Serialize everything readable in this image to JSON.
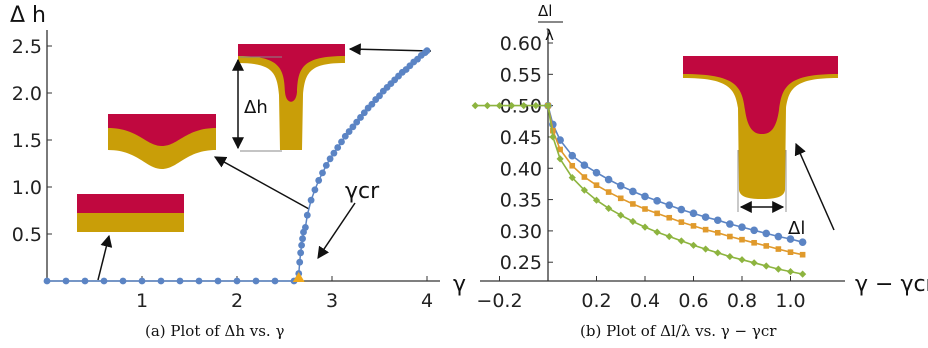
{
  "colors": {
    "red": "#c0083f",
    "gold": "#c99e08",
    "blue": "#5b84c4",
    "orange": "#e09a2c",
    "green": "#8db43f"
  },
  "chart_data": [
    {
      "type": "scatter",
      "ylabel": "Δ h",
      "xlabel": "γ",
      "xlim": [
        0,
        4.1
      ],
      "ylim": [
        0,
        2.5
      ],
      "x_ticks": [
        "1",
        "2",
        "3",
        "4"
      ],
      "y_ticks": [
        "0.5",
        "1.0",
        "1.5",
        "2.0",
        "2.5"
      ],
      "caption": "(a) Plot of Δh vs. γ",
      "critical_label": "γcr",
      "critical_x": 2.65,
      "inset_label": "Δh",
      "series": [
        {
          "color": "#5b84c4",
          "x": [
            0,
            0.2,
            0.4,
            0.6,
            0.8,
            1.0,
            1.2,
            1.4,
            1.6,
            1.8,
            2.0,
            2.2,
            2.4,
            2.6,
            2.65,
            2.66,
            2.67,
            2.68,
            2.69,
            2.7,
            2.72,
            2.74,
            2.78,
            2.82,
            2.86,
            2.9,
            2.94,
            2.98,
            3.02,
            3.06,
            3.1,
            3.14,
            3.18,
            3.22,
            3.26,
            3.3,
            3.34,
            3.38,
            3.42,
            3.46,
            3.5,
            3.54,
            3.58,
            3.62,
            3.66,
            3.7,
            3.74,
            3.78,
            3.82,
            3.86,
            3.9,
            3.94,
            3.98,
            4.0
          ],
          "y": [
            0,
            0,
            0,
            0,
            0,
            0,
            0,
            0,
            0,
            0,
            0,
            0,
            0,
            0,
            0.08,
            0.2,
            0.3,
            0.38,
            0.45,
            0.52,
            0.57,
            0.7,
            0.86,
            0.97,
            1.07,
            1.15,
            1.23,
            1.3,
            1.36,
            1.42,
            1.48,
            1.54,
            1.59,
            1.64,
            1.69,
            1.74,
            1.79,
            1.84,
            1.88,
            1.93,
            1.97,
            2.02,
            2.06,
            2.1,
            2.14,
            2.18,
            2.22,
            2.25,
            2.29,
            2.33,
            2.36,
            2.4,
            2.43,
            2.45
          ]
        }
      ]
    },
    {
      "type": "line",
      "ylabel_num": "Δl",
      "ylabel_den": "λ",
      "xlabel": "γ − γcr",
      "left_axis_label": "γ",
      "xlim": [
        -0.3,
        1.1
      ],
      "ylim": [
        0.22,
        0.6
      ],
      "x_ticks": [
        "−0.2",
        "0.2",
        "0.4",
        "0.6",
        "0.8",
        "1.0"
      ],
      "y_ticks": [
        "0.25",
        "0.30",
        "0.35",
        "0.40",
        "0.45",
        "0.50",
        "0.55",
        "0.60"
      ],
      "caption": "(b) Plot of Δl/λ vs. γ − γcr",
      "inset_label": "Δl",
      "series": [
        {
          "color": "#5b84c4",
          "marker": "circle",
          "x": [
            0,
            0.02,
            0.05,
            0.1,
            0.15,
            0.2,
            0.25,
            0.3,
            0.35,
            0.4,
            0.45,
            0.5,
            0.55,
            0.6,
            0.65,
            0.7,
            0.75,
            0.8,
            0.85,
            0.9,
            0.95,
            1.0,
            1.05
          ],
          "y": [
            0.5,
            0.47,
            0.445,
            0.42,
            0.405,
            0.393,
            0.382,
            0.372,
            0.363,
            0.355,
            0.348,
            0.341,
            0.334,
            0.328,
            0.322,
            0.317,
            0.311,
            0.306,
            0.301,
            0.296,
            0.291,
            0.287,
            0.282
          ]
        },
        {
          "color": "#e09a2c",
          "marker": "square",
          "x": [
            0,
            0.02,
            0.05,
            0.1,
            0.15,
            0.2,
            0.25,
            0.3,
            0.35,
            0.4,
            0.45,
            0.5,
            0.55,
            0.6,
            0.65,
            0.7,
            0.75,
            0.8,
            0.85,
            0.9,
            0.95,
            1.0,
            1.05
          ],
          "y": [
            0.5,
            0.46,
            0.43,
            0.404,
            0.386,
            0.373,
            0.362,
            0.352,
            0.343,
            0.335,
            0.328,
            0.321,
            0.314,
            0.308,
            0.302,
            0.297,
            0.291,
            0.286,
            0.281,
            0.276,
            0.271,
            0.266,
            0.262
          ]
        },
        {
          "color": "#8db43f",
          "marker": "diamond",
          "x": [
            -0.3,
            -0.25,
            -0.2,
            -0.15,
            -0.1,
            -0.05,
            0,
            0.02,
            0.05,
            0.1,
            0.15,
            0.2,
            0.25,
            0.3,
            0.35,
            0.4,
            0.45,
            0.5,
            0.55,
            0.6,
            0.65,
            0.7,
            0.75,
            0.8,
            0.85,
            0.9,
            0.95,
            1.0,
            1.05
          ],
          "y": [
            0.5,
            0.5,
            0.5,
            0.5,
            0.5,
            0.5,
            0.5,
            0.45,
            0.415,
            0.385,
            0.365,
            0.349,
            0.336,
            0.325,
            0.315,
            0.306,
            0.298,
            0.291,
            0.284,
            0.277,
            0.271,
            0.265,
            0.259,
            0.254,
            0.249,
            0.244,
            0.239,
            0.235,
            0.231
          ]
        }
      ]
    }
  ]
}
